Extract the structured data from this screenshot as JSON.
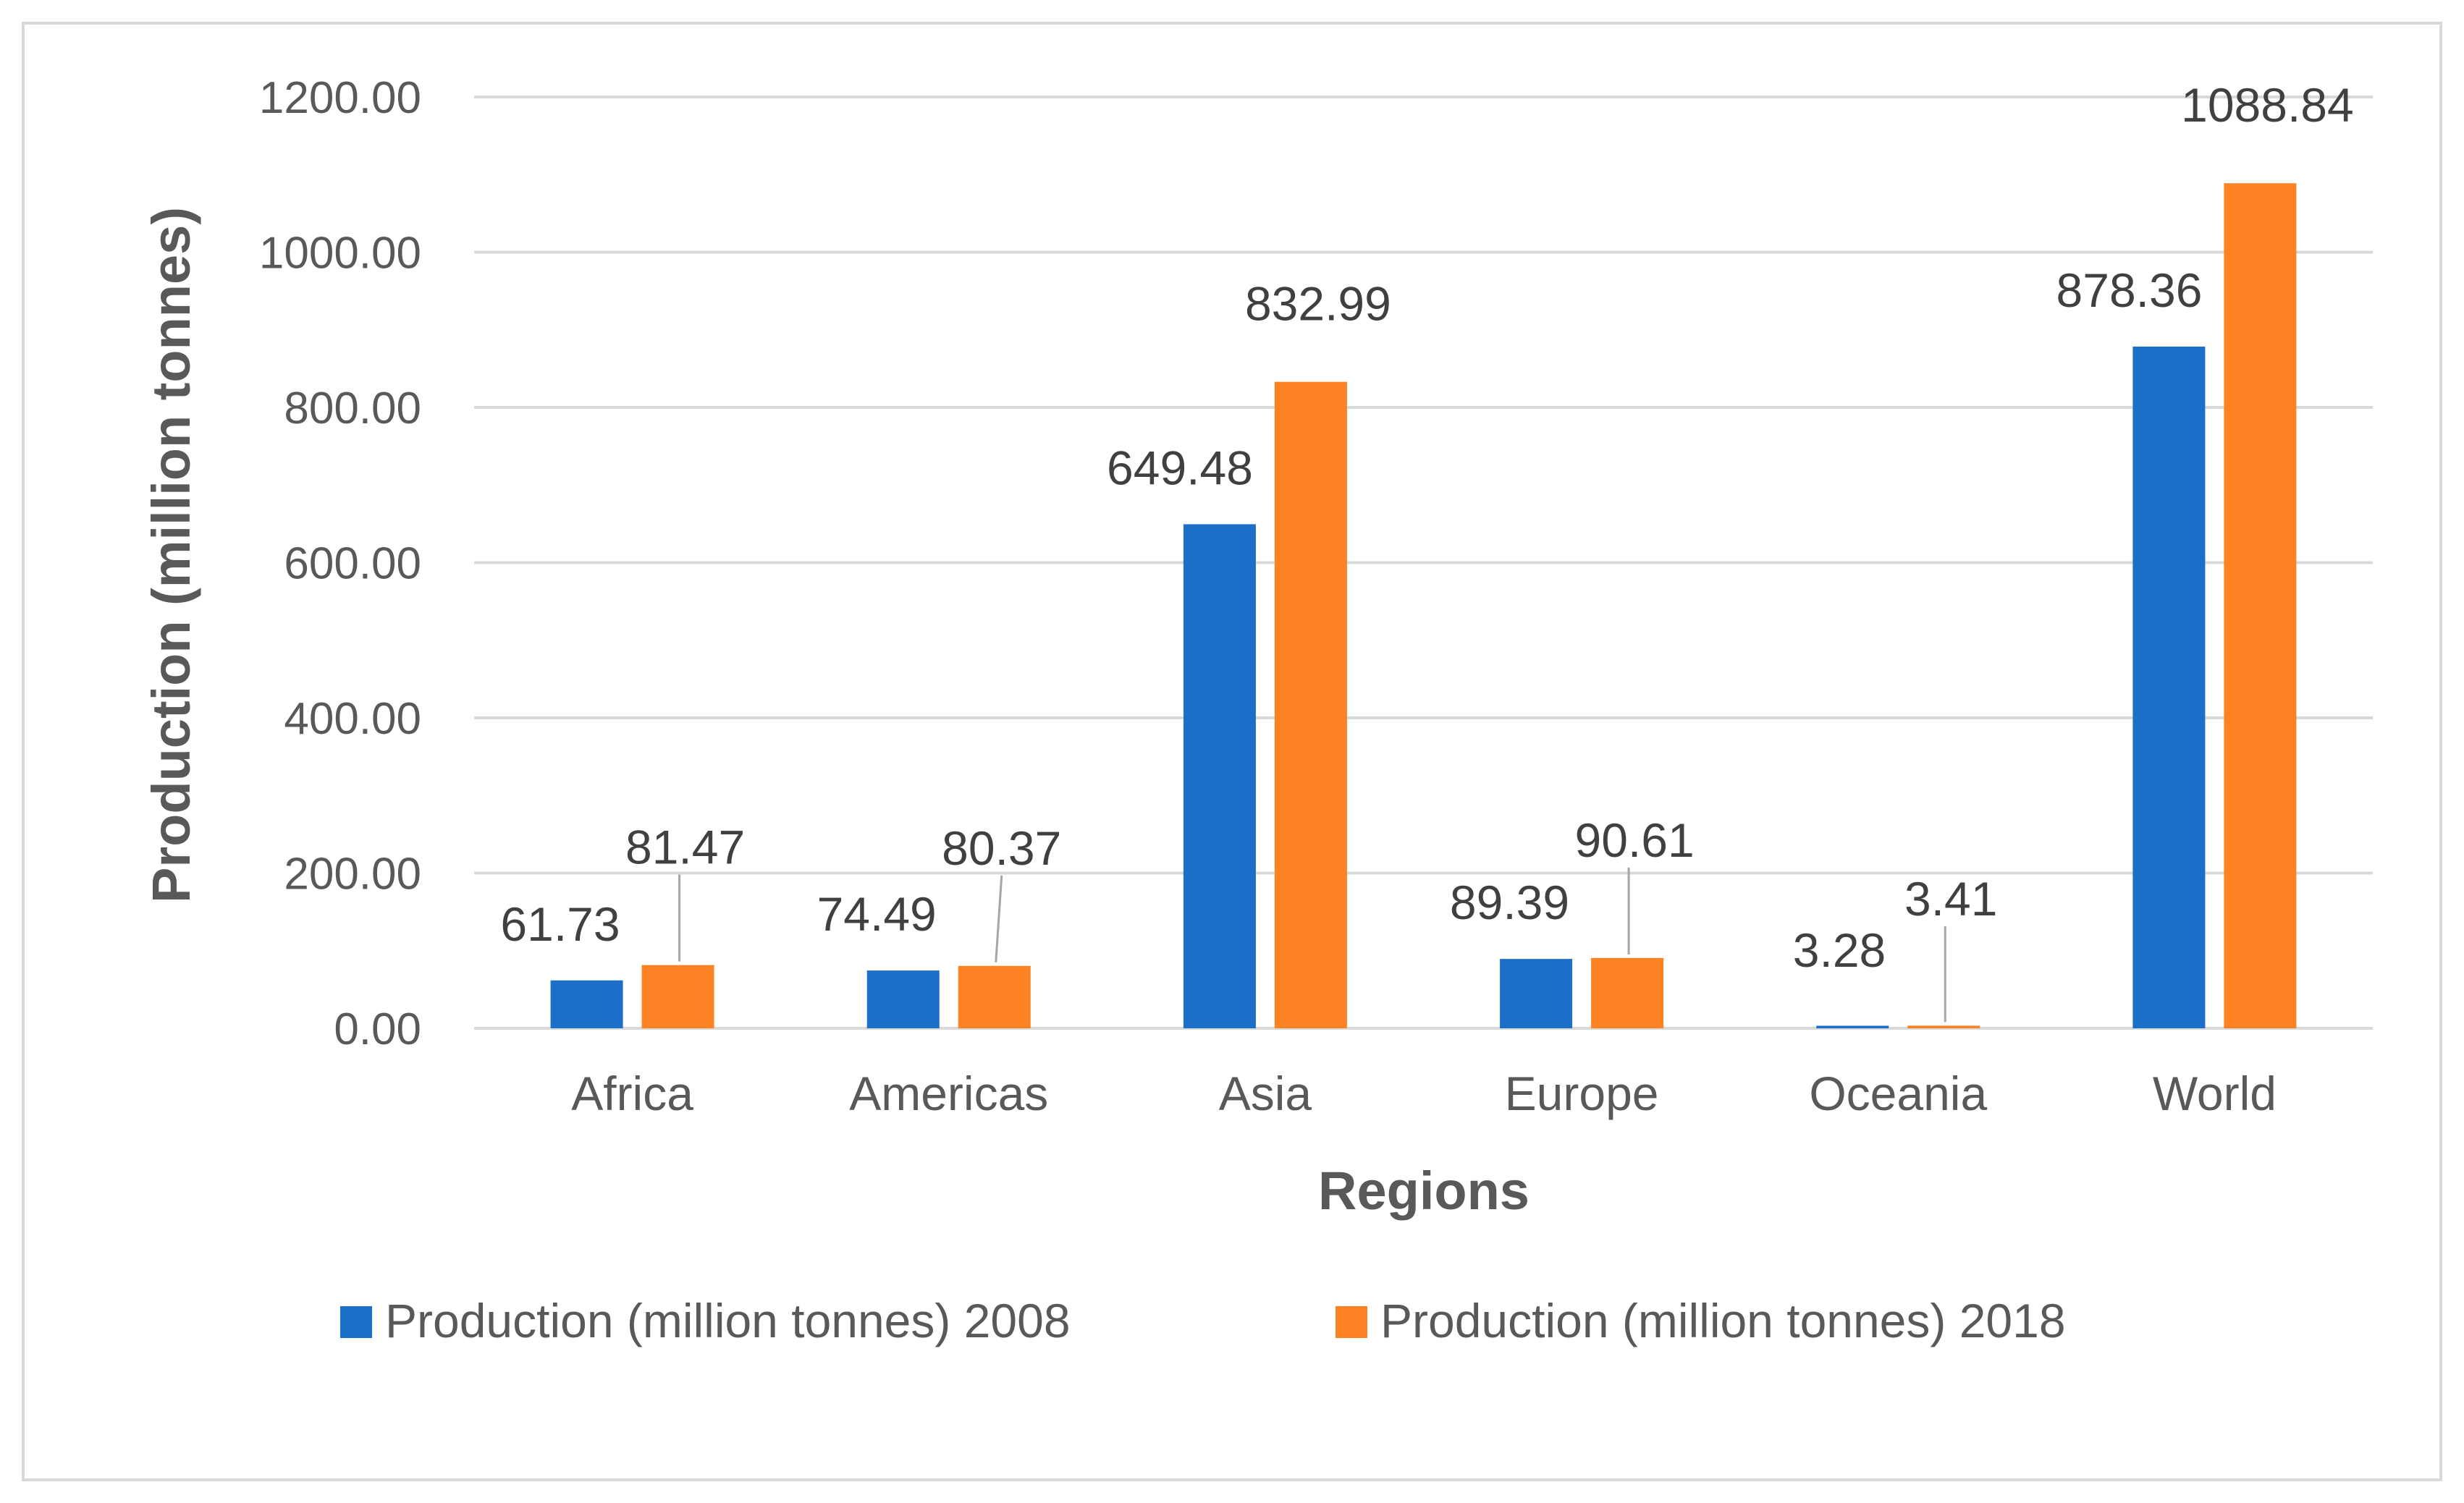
{
  "chart_data": {
    "type": "bar",
    "title": "",
    "xlabel": "Regions",
    "ylabel": "Production (million tonnes)",
    "categories": [
      "Africa",
      "Americas",
      "Asia",
      "Europe",
      "Oceania",
      "World"
    ],
    "ylim": [
      0,
      1200
    ],
    "yticks": [
      "0.00",
      "200.00",
      "400.00",
      "600.00",
      "800.00",
      "1000.00",
      "1200.00"
    ],
    "grid": true,
    "legend_position": "bottom",
    "series": [
      {
        "name": "Production (million tonnes) 2008",
        "color": "#1b6fc9",
        "values": [
          61.73,
          74.49,
          649.48,
          89.39,
          3.28,
          878.36
        ],
        "labels": [
          "61.73",
          "74.49",
          "649.48",
          "89.39",
          "3.28",
          "878.36"
        ]
      },
      {
        "name": "Production (million tonnes) 2018",
        "color": "#fd8224",
        "values": [
          81.47,
          80.37,
          832.99,
          90.61,
          3.41,
          1088.84
        ],
        "labels": [
          "81.47",
          "80.37",
          "832.99",
          "90.61",
          "3.41",
          "1088.84"
        ]
      }
    ]
  }
}
